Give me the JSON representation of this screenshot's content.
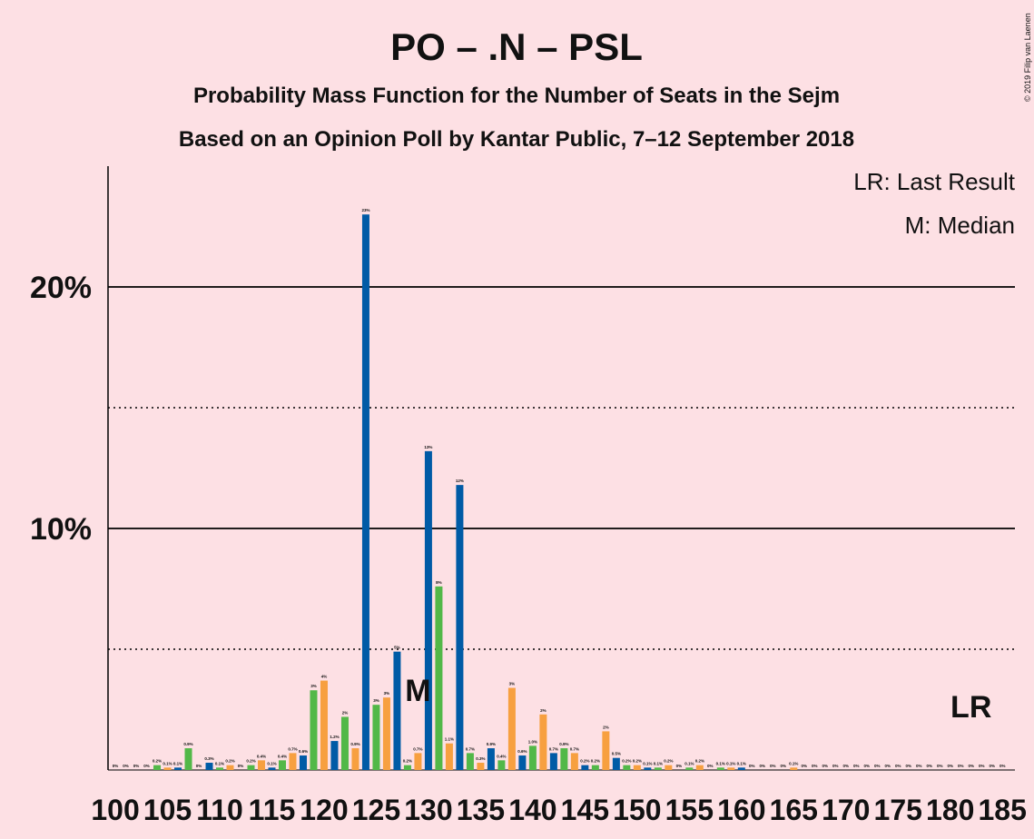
{
  "chart_data": {
    "type": "bar",
    "title": "PO – .N – PSL",
    "subtitle": "Probability Mass Function for the Number of Seats in the Sejm",
    "subtitle2": "Based on an Opinion Poll by Kantar Public, 7–12 September 2018",
    "copyright": "© 2019 Filip van Laenen",
    "legend_items": [
      "LR: Last Result",
      "M: Median"
    ],
    "median": {
      "x": 129,
      "label": "M"
    },
    "last_result": {
      "x": 182,
      "label": "LR"
    },
    "color_cycle": [
      "#005ba6",
      "#52b848",
      "#f7a040"
    ],
    "x": [
      100,
      101,
      102,
      103,
      104,
      105,
      106,
      107,
      108,
      109,
      110,
      111,
      112,
      113,
      114,
      115,
      116,
      117,
      118,
      119,
      120,
      121,
      122,
      123,
      124,
      125,
      126,
      127,
      128,
      129,
      130,
      131,
      132,
      133,
      134,
      135,
      136,
      137,
      138,
      139,
      140,
      141,
      142,
      143,
      144,
      145,
      146,
      147,
      148,
      149,
      150,
      151,
      152,
      153,
      154,
      155,
      156,
      157,
      158,
      159,
      160,
      161,
      162,
      163,
      164,
      165,
      166,
      167,
      168,
      169,
      170,
      171,
      172,
      173,
      174,
      175,
      176,
      177,
      178,
      179,
      180,
      181,
      182,
      183,
      184,
      185
    ],
    "values": [
      0,
      0,
      0,
      0,
      0.2,
      0.1,
      0.1,
      0.9,
      0,
      0.3,
      0.1,
      0.2,
      0,
      0.2,
      0.4,
      0.1,
      0.4,
      0.7,
      0.6,
      3.3,
      3.7,
      1.2,
      2.2,
      0.9,
      23.0,
      2.7,
      3.0,
      4.9,
      0.2,
      0.7,
      13.2,
      7.6,
      1.1,
      11.8,
      0.7,
      0.3,
      0.9,
      0.4,
      3.4,
      0.6,
      1.0,
      2.3,
      0.7,
      0.9,
      0.7,
      0.2,
      0.2,
      1.6,
      0.5,
      0.2,
      0.2,
      0.1,
      0.1,
      0.2,
      0,
      0.1,
      0.2,
      0,
      0.1,
      0.1,
      0.1,
      0,
      0,
      0,
      0,
      0.1,
      0,
      0,
      0,
      0,
      0,
      0,
      0,
      0,
      0,
      0,
      0,
      0,
      0,
      0,
      0,
      0,
      0,
      0,
      0,
      0
    ],
    "value_labels": [
      "0%",
      "0%",
      "0%",
      "0%",
      "0.2%",
      "0.1%",
      "0.1%",
      "0.9%",
      "0%",
      "0.3%",
      "0.1%",
      "0.2%",
      "0%",
      "0.2%",
      "0.4%",
      "0.1%",
      "0.4%",
      "0.7%",
      "0.6%",
      "3%",
      "4%",
      "1.2%",
      "2%",
      "0.9%",
      "23%",
      "3%",
      "3%",
      "5%",
      "0.2%",
      "0.7%",
      "13%",
      "8%",
      "1.1%",
      "12%",
      "0.7%",
      "0.3%",
      "0.9%",
      "0.4%",
      "3%",
      "0.6%",
      "1.0%",
      "2%",
      "0.7%",
      "0.9%",
      "0.7%",
      "0.2%",
      "0.2%",
      "2%",
      "0.5%",
      "0.2%",
      "0.2%",
      "0.1%",
      "0.1%",
      "0.2%",
      "0%",
      "0.1%",
      "0.2%",
      "0%",
      "0.1%",
      "0.1%",
      "0.1%",
      "0%",
      "0%",
      "0%",
      "0%",
      "0.1%",
      "0%",
      "0%",
      "0%",
      "0%",
      "0%",
      "0%",
      "0%",
      "0%",
      "0%",
      "0%",
      "0%",
      "0%",
      "0%",
      "0%",
      "0%",
      "0%",
      "0%",
      "0%",
      "0%",
      "0%"
    ],
    "xlim": [
      99.3,
      186.2
    ],
    "xticks": [
      100,
      105,
      110,
      115,
      120,
      125,
      130,
      135,
      140,
      145,
      150,
      155,
      160,
      165,
      170,
      175,
      180,
      185
    ],
    "ylim": [
      0,
      25
    ],
    "yticks": [
      {
        "value": 10,
        "label": "10%"
      },
      {
        "value": 20,
        "label": "20%"
      }
    ],
    "minor_yticks": [
      5,
      15
    ],
    "grid": true
  }
}
